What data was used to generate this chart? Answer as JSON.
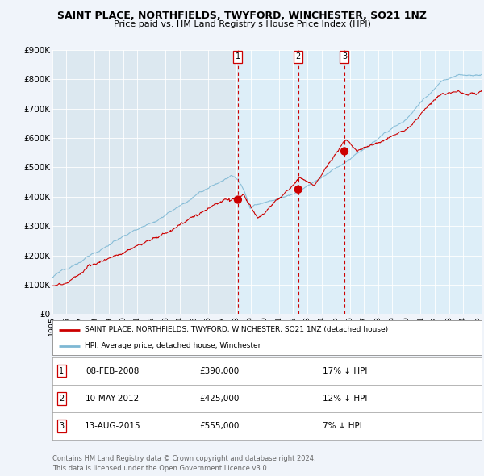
{
  "title": "SAINT PLACE, NORTHFIELDS, TWYFORD, WINCHESTER, SO21 1NZ",
  "subtitle": "Price paid vs. HM Land Registry's House Price Index (HPI)",
  "ylim": [
    0,
    900000
  ],
  "yticks": [
    0,
    100000,
    200000,
    300000,
    400000,
    500000,
    600000,
    700000,
    800000,
    900000
  ],
  "ytick_labels": [
    "£0",
    "£100K",
    "£200K",
    "£300K",
    "£400K",
    "£500K",
    "£600K",
    "£700K",
    "£800K",
    "£900K"
  ],
  "xlim_start": 1995.0,
  "xlim_end": 2025.3,
  "hpi_color": "#7eb8d4",
  "price_color": "#cc0000",
  "sale_dot_color": "#cc0000",
  "vline_color": "#cc0000",
  "shade_color": "#ddeef8",
  "background_color": "#f0f4fa",
  "plot_bg_color": "#dce8f0",
  "grid_color": "#ffffff",
  "legend_label_price": "SAINT PLACE, NORTHFIELDS, TWYFORD, WINCHESTER, SO21 1NZ (detached house)",
  "legend_label_hpi": "HPI: Average price, detached house, Winchester",
  "sales": [
    {
      "num": 1,
      "date_str": "08-FEB-2008",
      "price": 390000,
      "pct": "17%",
      "x": 2008.1
    },
    {
      "num": 2,
      "date_str": "10-MAY-2012",
      "price": 425000,
      "pct": "12%",
      "x": 2012.36
    },
    {
      "num": 3,
      "date_str": "13-AUG-2015",
      "price": 555000,
      "pct": "7%",
      "x": 2015.62
    }
  ],
  "footer_line1": "Contains HM Land Registry data © Crown copyright and database right 2024.",
  "footer_line2": "This data is licensed under the Open Government Licence v3.0."
}
